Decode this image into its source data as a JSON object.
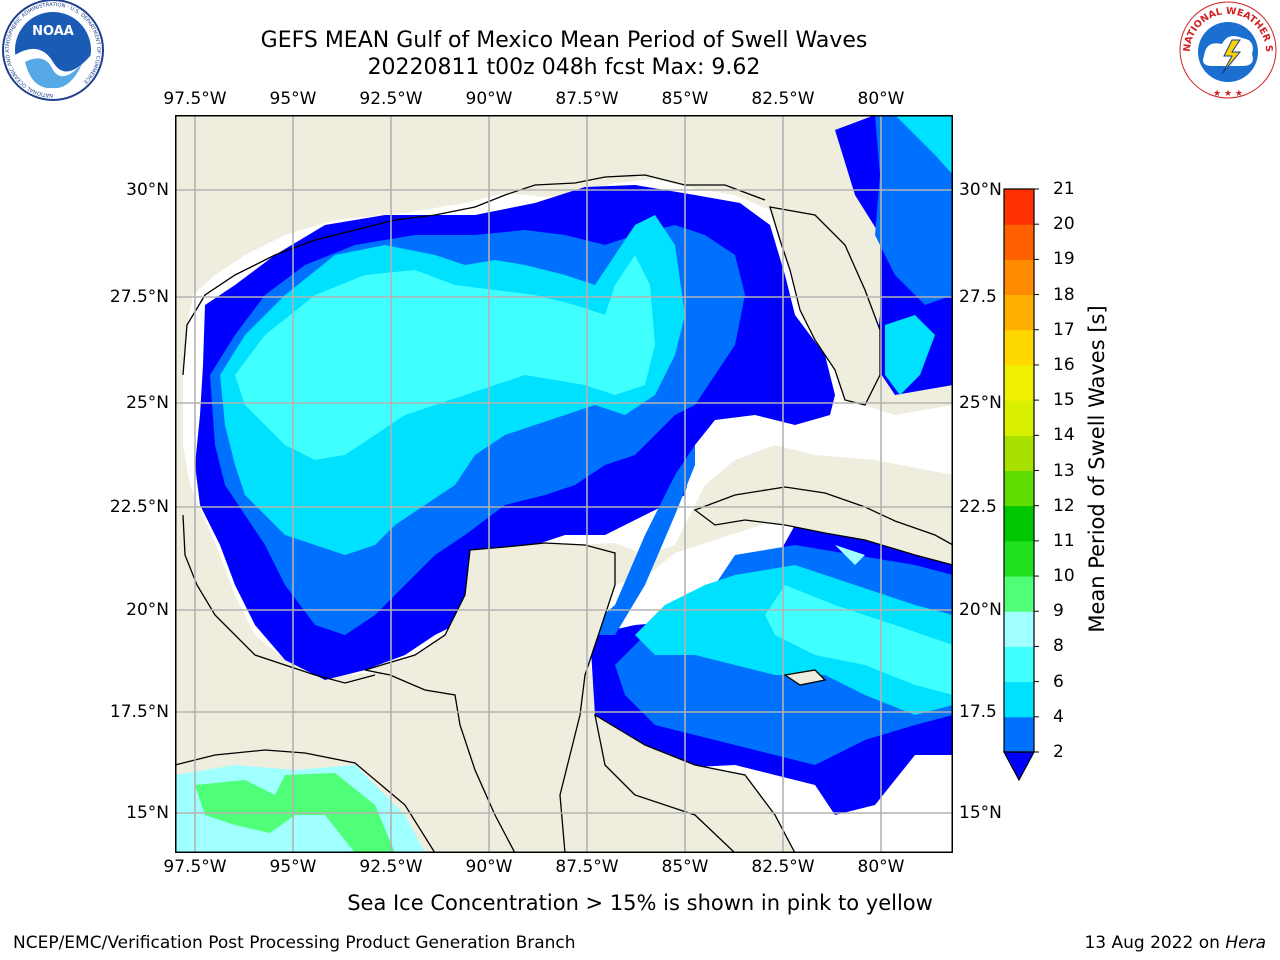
{
  "title": {
    "line1": "GEFS MEAN Gulf of Mexico Mean Period of Swell Waves",
    "line2": "20220811 t00z 048h fcst   Max: 9.62"
  },
  "logos": {
    "left": {
      "text": "NOAA",
      "ring_text": "NATIONAL OCEANIC AND ATMOSPHERIC ADMINISTRATION · U.S. DEPARTMENT OF COMMERCE"
    },
    "right": {
      "ring_text": "NATIONAL WEATHER SERVICE"
    }
  },
  "map": {
    "lon_labels": [
      "97.5°W",
      "95°W",
      "92.5°W",
      "90°W",
      "87.5°W",
      "85°W",
      "82.5°W",
      "80°W"
    ],
    "lat_labels_left": [
      "30°N",
      "27.5°N",
      "25°N",
      "22.5°N",
      "20°N",
      "17.5°N",
      "15°N"
    ],
    "lat_labels_right": [
      "30°N",
      "27.5",
      "25°N",
      "22.5",
      "20°N",
      "17.5",
      "15°N"
    ],
    "colors": {
      "land": "#eeedde",
      "ocean_no_data": "#ffffff",
      "grid": "#b3b3b3",
      "coast": "#000000"
    }
  },
  "colorbar": {
    "label": "Mean Period of Swell Waves [s]",
    "ticks": [
      "2",
      "4",
      "6",
      "8",
      "9",
      "10",
      "11",
      "12",
      "13",
      "14",
      "15",
      "16",
      "17",
      "18",
      "19",
      "20",
      "21"
    ],
    "colors": [
      "#0000ff",
      "#0070ff",
      "#00e0ff",
      "#40ffff",
      "#a0ffff",
      "#50ff78",
      "#20e020",
      "#00c800",
      "#60dc00",
      "#a8e000",
      "#d8f000",
      "#f0f000",
      "#ffd800",
      "#ffb000",
      "#ff8c00",
      "#ff6000",
      "#ff3000",
      "#ff0000"
    ],
    "under_color": "#0000ff"
  },
  "footer": {
    "ice_note": "Sea Ice Concentration > 15% is shown in pink to yellow",
    "credit": "NCEP/EMC/Verification Post Processing Product Generation Branch",
    "date": "13 Aug 2022 on ",
    "host": "Hera"
  }
}
